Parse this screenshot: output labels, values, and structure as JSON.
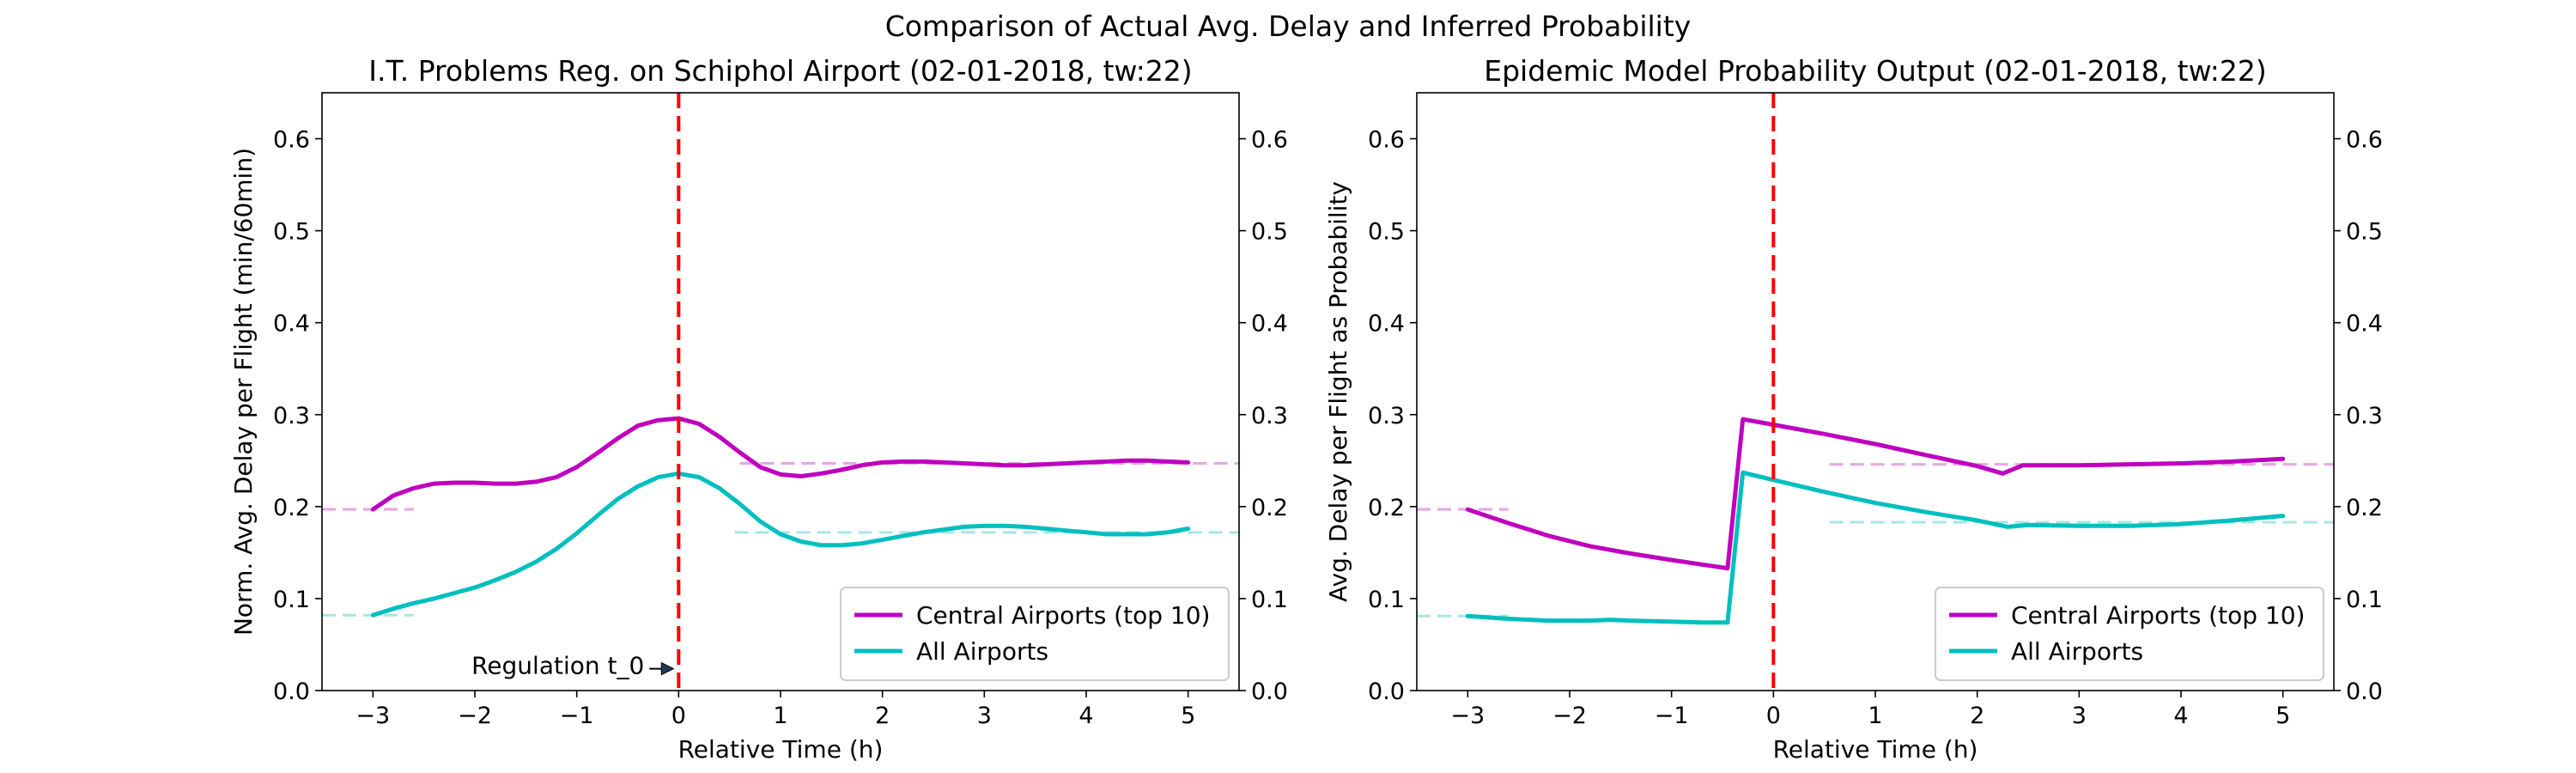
{
  "suptitle": "Comparison of Actual Avg. Delay and Inferred Probability",
  "colors": {
    "central": "#bf00bf",
    "all": "#00bfbf",
    "central_ref": "#e6a6e6",
    "all_ref": "#a6e6e6",
    "vline": "#ff0000"
  },
  "chart_data": [
    {
      "type": "line",
      "title": "I.T. Problems Reg. on Schiphol Airport (02-01-2018, tw:22)",
      "xlabel": "Relative Time (h)",
      "ylabel": "Norm. Avg. Delay per Flight (min/60min)",
      "xlim": [
        -3.5,
        5.5
      ],
      "ylim": [
        0,
        0.65
      ],
      "xticks": [
        -3,
        -2,
        -1,
        0,
        1,
        2,
        3,
        4,
        5
      ],
      "xtick_labels": [
        "−3",
        "−2",
        "−1",
        "0",
        "1",
        "2",
        "3",
        "4",
        "5"
      ],
      "yticks": [
        0.0,
        0.1,
        0.2,
        0.3,
        0.4,
        0.5,
        0.6
      ],
      "ytick_labels": [
        "0.0",
        "0.1",
        "0.2",
        "0.3",
        "0.4",
        "0.5",
        "0.6"
      ],
      "right_axis_ticks": true,
      "grid": false,
      "legend_position": "lower-right",
      "vline_x": 0,
      "annotation": {
        "text": "Regulation t_0",
        "x": 0,
        "y": 0.02,
        "arrow": true
      },
      "series": [
        {
          "name": "Central Airports (top 10)",
          "color_key": "central",
          "x": [
            -3,
            -2.8,
            -2.6,
            -2.4,
            -2.2,
            -2,
            -1.8,
            -1.6,
            -1.4,
            -1.2,
            -1,
            -0.8,
            -0.6,
            -0.4,
            -0.2,
            0,
            0.2,
            0.4,
            0.6,
            0.8,
            1,
            1.2,
            1.4,
            1.6,
            1.8,
            2,
            2.2,
            2.4,
            2.6,
            2.8,
            3,
            3.2,
            3.4,
            3.6,
            3.8,
            4,
            4.2,
            4.4,
            4.6,
            4.8,
            5
          ],
          "y": [
            0.197,
            0.212,
            0.22,
            0.225,
            0.226,
            0.226,
            0.225,
            0.225,
            0.227,
            0.232,
            0.243,
            0.258,
            0.274,
            0.288,
            0.294,
            0.296,
            0.29,
            0.276,
            0.259,
            0.243,
            0.235,
            0.233,
            0.236,
            0.24,
            0.245,
            0.248,
            0.249,
            0.249,
            0.248,
            0.247,
            0.246,
            0.245,
            0.245,
            0.246,
            0.247,
            0.248,
            0.249,
            0.25,
            0.25,
            0.249,
            0.248
          ]
        },
        {
          "name": "All Airports",
          "color_key": "all",
          "x": [
            -3,
            -2.8,
            -2.6,
            -2.4,
            -2.2,
            -2,
            -1.8,
            -1.6,
            -1.4,
            -1.2,
            -1,
            -0.8,
            -0.6,
            -0.4,
            -0.2,
            0,
            0.2,
            0.4,
            0.6,
            0.8,
            1,
            1.2,
            1.4,
            1.6,
            1.8,
            2,
            2.2,
            2.4,
            2.6,
            2.8,
            3,
            3.2,
            3.4,
            3.6,
            3.8,
            4,
            4.2,
            4.4,
            4.6,
            4.8,
            5
          ],
          "y": [
            0.082,
            0.089,
            0.095,
            0.1,
            0.106,
            0.112,
            0.12,
            0.129,
            0.14,
            0.154,
            0.171,
            0.19,
            0.208,
            0.222,
            0.232,
            0.236,
            0.232,
            0.22,
            0.203,
            0.184,
            0.17,
            0.162,
            0.158,
            0.158,
            0.16,
            0.164,
            0.168,
            0.172,
            0.175,
            0.178,
            0.179,
            0.179,
            0.178,
            0.176,
            0.174,
            0.172,
            0.17,
            0.17,
            0.17,
            0.172,
            0.176
          ]
        }
      ],
      "reference_lines": [
        {
          "color_key": "central_ref",
          "x": [
            -3.5,
            -2.6
          ],
          "y": 0.197
        },
        {
          "color_key": "central_ref",
          "x": [
            0.6,
            5.5
          ],
          "y": 0.247
        },
        {
          "color_key": "all_ref",
          "x": [
            -3.5,
            -2.6
          ],
          "y": 0.082
        },
        {
          "color_key": "all_ref",
          "x": [
            0.55,
            5.5
          ],
          "y": 0.172
        }
      ]
    },
    {
      "type": "line",
      "title": "Epidemic Model Probability Output (02-01-2018, tw:22)",
      "xlabel": "Relative Time (h)",
      "ylabel": "Avg. Delay per Flight as Probability",
      "xlim": [
        -3.5,
        5.5
      ],
      "ylim": [
        0,
        0.65
      ],
      "xticks": [
        -3,
        -2,
        -1,
        0,
        1,
        2,
        3,
        4,
        5
      ],
      "xtick_labels": [
        "−3",
        "−2",
        "−1",
        "0",
        "1",
        "2",
        "3",
        "4",
        "5"
      ],
      "yticks": [
        0.0,
        0.1,
        0.2,
        0.3,
        0.4,
        0.5,
        0.6
      ],
      "ytick_labels": [
        "0.0",
        "0.1",
        "0.2",
        "0.3",
        "0.4",
        "0.5",
        "0.6"
      ],
      "right_axis_ticks": true,
      "grid": false,
      "legend_position": "lower-right",
      "vline_x": 0,
      "series": [
        {
          "name": "Central Airports (top 10)",
          "color_key": "central",
          "x": [
            -3,
            -2.6,
            -2.2,
            -1.8,
            -1.4,
            -1,
            -0.7,
            -0.45,
            -0.3,
            0,
            0.5,
            1,
            1.5,
            2,
            2.25,
            2.45,
            3,
            3.5,
            4,
            4.5,
            5
          ],
          "y": [
            0.197,
            0.182,
            0.168,
            0.157,
            0.149,
            0.142,
            0.137,
            0.133,
            0.295,
            0.289,
            0.279,
            0.268,
            0.256,
            0.244,
            0.236,
            0.245,
            0.245,
            0.246,
            0.247,
            0.249,
            0.252
          ]
        },
        {
          "name": "All Airports",
          "color_key": "all",
          "x": [
            -3,
            -2.6,
            -2.2,
            -1.8,
            -1.6,
            -1.4,
            -1,
            -0.7,
            -0.45,
            -0.3,
            0,
            0.5,
            1,
            1.5,
            2,
            2.3,
            2.5,
            3,
            3.5,
            4,
            4.5,
            5
          ],
          "y": [
            0.081,
            0.078,
            0.076,
            0.076,
            0.077,
            0.076,
            0.075,
            0.074,
            0.074,
            0.237,
            0.229,
            0.216,
            0.204,
            0.194,
            0.185,
            0.178,
            0.18,
            0.179,
            0.179,
            0.181,
            0.185,
            0.19
          ]
        }
      ],
      "reference_lines": [
        {
          "color_key": "central_ref",
          "x": [
            -3.5,
            -2.6
          ],
          "y": 0.197
        },
        {
          "color_key": "central_ref",
          "x": [
            0.55,
            5.5
          ],
          "y": 0.246
        },
        {
          "color_key": "all_ref",
          "x": [
            -3.5,
            -2.6
          ],
          "y": 0.081
        },
        {
          "color_key": "all_ref",
          "x": [
            0.55,
            5.5
          ],
          "y": 0.183
        }
      ]
    }
  ]
}
